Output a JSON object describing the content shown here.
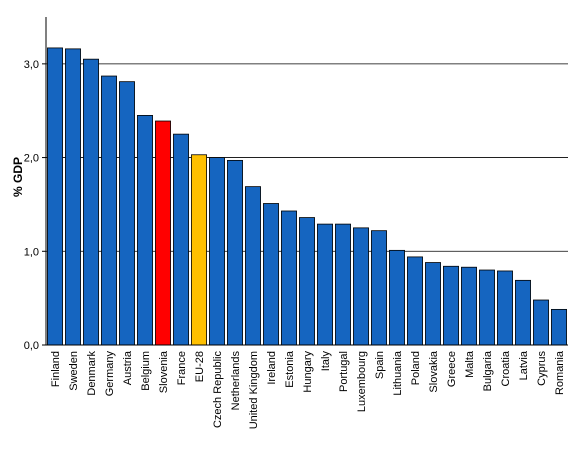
{
  "chart_data": {
    "type": "bar",
    "title": "",
    "xlabel": "",
    "ylabel": "% GDP",
    "ylim": [
      0,
      3.5
    ],
    "yticks": [
      "0,0",
      "1,0",
      "2,0",
      "3,0"
    ],
    "ytick_values": [
      0,
      1,
      2,
      3
    ],
    "grid": true,
    "legend": "none",
    "default_color": "#1565C0",
    "highlight_colors": {
      "Slovenia": "#FF0000",
      "EU-28": "#FFC000"
    },
    "categories": [
      "Finland",
      "Sweden",
      "Denmark",
      "Germany",
      "Austria",
      "Belgium",
      "Slovenia",
      "France",
      "EU-28",
      "Czech Republic",
      "Netherlands",
      "United Kingdom",
      "Ireland",
      "Estonia",
      "Hungary",
      "Italy",
      "Portugal",
      "Luxembourg",
      "Spain",
      "Lithuania",
      "Poland",
      "Slovakia",
      "Greece",
      "Malta",
      "Bulgaria",
      "Croatia",
      "Latvia",
      "Cyprus",
      "Romania"
    ],
    "values": [
      3.17,
      3.16,
      3.05,
      2.87,
      2.81,
      2.45,
      2.39,
      2.25,
      2.03,
      2.0,
      1.97,
      1.69,
      1.51,
      1.43,
      1.36,
      1.29,
      1.29,
      1.25,
      1.22,
      1.01,
      0.94,
      0.88,
      0.84,
      0.83,
      0.8,
      0.79,
      0.69,
      0.48,
      0.38
    ]
  }
}
